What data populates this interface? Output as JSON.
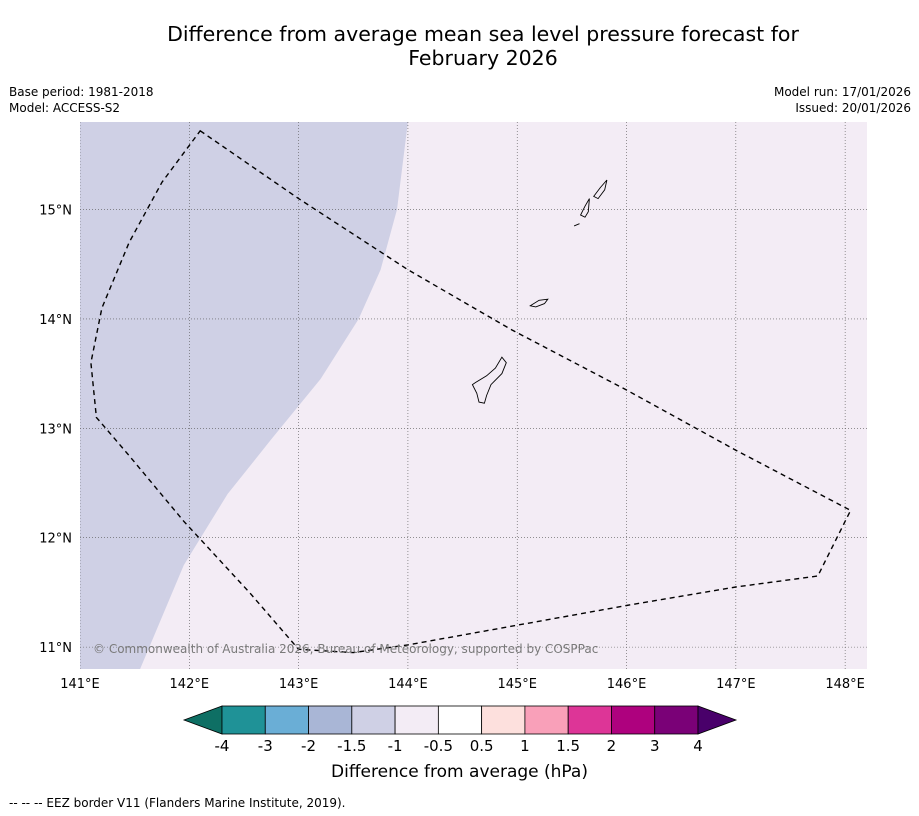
{
  "title_line1": "Difference from average mean sea level pressure forecast for",
  "title_line2": "February 2026",
  "base_period": "Base period: 1981-2018",
  "model": "Model: ACCESS-S2",
  "model_run": "Model run: 17/01/2026",
  "issued": "Issued: 20/01/2026",
  "copyright": "© Commonwealth of Australia 2026, Bureau of Meteorology, supported by COSPPac",
  "colorbar_label": "Difference from average (hPa)",
  "footnote": "--  --  -- EEZ border V11 (Flanders Marine Institute, 2019).",
  "map_data": {
    "lon_range": [
      141.0,
      148.2
    ],
    "lat_range": [
      10.8,
      15.8
    ],
    "lon_ticks": [
      "141°E",
      "142°E",
      "143°E",
      "144°E",
      "145°E",
      "146°E",
      "147°E",
      "148°E"
    ],
    "lat_ticks": [
      "15°N",
      "14°N",
      "13°N",
      "12°N",
      "11°N"
    ],
    "regions": [
      {
        "name": "-1.5 to -1 hPa",
        "color": "#cfd0e5",
        "side": "west"
      },
      {
        "name": "-1 to -0.5 hPa",
        "color": "#f3ecf5",
        "side": "east"
      }
    ],
    "boundary_lonlat": [
      [
        144.0,
        15.8
      ],
      [
        143.9,
        15.0
      ],
      [
        143.75,
        14.45
      ],
      [
        143.55,
        14.0
      ],
      [
        143.2,
        13.45
      ],
      [
        142.75,
        12.9
      ],
      [
        142.35,
        12.4
      ],
      [
        141.95,
        11.75
      ],
      [
        141.55,
        10.8
      ]
    ],
    "eez_lonlat": [
      [
        142.1,
        15.72
      ],
      [
        143.0,
        15.1
      ],
      [
        144.0,
        14.45
      ],
      [
        144.95,
        13.9
      ],
      [
        146.0,
        13.35
      ],
      [
        147.0,
        12.8
      ],
      [
        148.05,
        12.25
      ],
      [
        147.75,
        11.65
      ],
      [
        147.0,
        11.55
      ],
      [
        146.0,
        11.38
      ],
      [
        145.0,
        11.2
      ],
      [
        144.0,
        11.02
      ],
      [
        143.5,
        10.95
      ],
      [
        143.0,
        10.98
      ],
      [
        142.55,
        11.5
      ],
      [
        141.95,
        12.15
      ],
      [
        141.45,
        12.75
      ],
      [
        141.15,
        13.1
      ],
      [
        141.1,
        13.6
      ],
      [
        141.2,
        14.1
      ],
      [
        141.45,
        14.7
      ],
      [
        141.75,
        15.25
      ]
    ],
    "islands": [
      {
        "name": "Guam",
        "outline": [
          [
            144.62,
            13.42
          ],
          [
            144.72,
            13.48
          ],
          [
            144.8,
            13.55
          ],
          [
            144.86,
            13.65
          ],
          [
            144.9,
            13.6
          ],
          [
            144.86,
            13.5
          ],
          [
            144.76,
            13.4
          ],
          [
            144.72,
            13.3
          ],
          [
            144.7,
            13.23
          ],
          [
            144.65,
            13.24
          ],
          [
            144.63,
            13.32
          ],
          [
            144.59,
            13.4
          ]
        ]
      },
      {
        "name": "Rota",
        "outline": [
          [
            145.12,
            14.12
          ],
          [
            145.2,
            14.17
          ],
          [
            145.28,
            14.18
          ],
          [
            145.25,
            14.14
          ],
          [
            145.17,
            14.11
          ]
        ]
      },
      {
        "name": "Tinian",
        "outline": [
          [
            145.58,
            14.95
          ],
          [
            145.62,
            15.03
          ],
          [
            145.66,
            15.1
          ],
          [
            145.65,
            14.98
          ],
          [
            145.62,
            14.93
          ]
        ]
      },
      {
        "name": "Saipan",
        "outline": [
          [
            145.7,
            15.12
          ],
          [
            145.76,
            15.2
          ],
          [
            145.82,
            15.27
          ],
          [
            145.8,
            15.18
          ],
          [
            145.74,
            15.1
          ]
        ]
      },
      {
        "name": "Aguijan",
        "outline": [
          [
            145.52,
            14.85
          ],
          [
            145.57,
            14.87
          ]
        ]
      }
    ]
  },
  "colorbar": {
    "levels": [
      "-4",
      "-3",
      "-2",
      "-1.5",
      "-1",
      "-0.5",
      "0.5",
      "1",
      "1.5",
      "2",
      "3",
      "4"
    ],
    "colors": [
      "#0e6f64",
      "#1f9297",
      "#6aaed6",
      "#a9b6d6",
      "#cfd0e5",
      "#f3ecf5",
      "#ffffff",
      "#fde0dd",
      "#f9a0b9",
      "#dd3597",
      "#ae017e",
      "#7a0177",
      "#49006a"
    ]
  }
}
